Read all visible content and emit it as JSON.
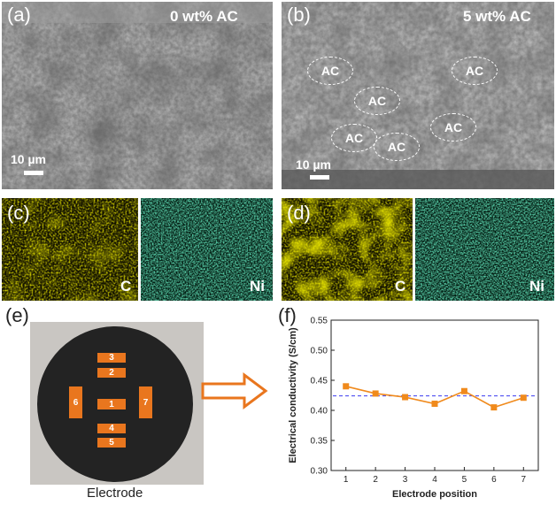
{
  "panels": {
    "a": {
      "letter": "(a)",
      "label": "0 wt% AC",
      "scale": "10 µm"
    },
    "b": {
      "letter": "(b)",
      "label": "5 wt% AC",
      "scale": "10 µm",
      "annotations": [
        "AC",
        "AC",
        "AC",
        "AC",
        "AC",
        "AC"
      ]
    },
    "c": {
      "letter": "(c)",
      "maps": [
        "C",
        "Ni"
      ]
    },
    "d": {
      "letter": "(d)",
      "maps": [
        "C",
        "Ni"
      ]
    },
    "e": {
      "letter": "(e)",
      "caption": "Electrode",
      "pads": [
        "3",
        "2",
        "6",
        "1",
        "7",
        "4",
        "5"
      ]
    },
    "f": {
      "letter": "(f)"
    }
  },
  "colors": {
    "carbon_map": "#c8c000",
    "nickel_map": "#1aa36a",
    "pad": "#e9761e",
    "series": "#f08a1c",
    "reference_line": "#3a3af0"
  },
  "chart_data": {
    "type": "line",
    "title": "",
    "xlabel": "Electrode position",
    "ylabel": "Electrical conductivity (S/cm)",
    "x": [
      1,
      2,
      3,
      4,
      5,
      6,
      7
    ],
    "xticks": [
      "1",
      "2",
      "3",
      "4",
      "5",
      "6",
      "7"
    ],
    "yticks": [
      "0.30",
      "0.35",
      "0.40",
      "0.45",
      "0.50",
      "0.55"
    ],
    "ylim": [
      0.3,
      0.55
    ],
    "xlim": [
      0.5,
      7.5
    ],
    "series": [
      {
        "values": [
          0.44,
          0.428,
          0.422,
          0.411,
          0.432,
          0.405,
          0.421
        ],
        "marker": "square"
      }
    ],
    "reference_line": {
      "value": 0.424,
      "style": "dashed"
    },
    "grid": false
  }
}
